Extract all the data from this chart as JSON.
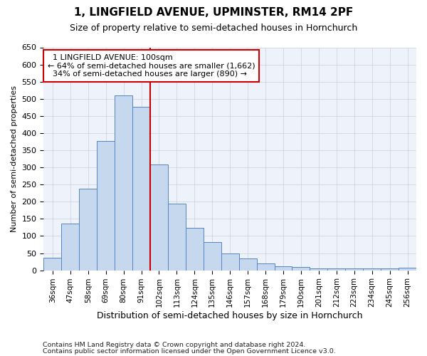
{
  "title1": "1, LINGFIELD AVENUE, UPMINSTER, RM14 2PF",
  "title2": "Size of property relative to semi-detached houses in Hornchurch",
  "xlabel": "Distribution of semi-detached houses by size in Hornchurch",
  "ylabel": "Number of semi-detached properties",
  "categories": [
    "36sqm",
    "47sqm",
    "58sqm",
    "69sqm",
    "80sqm",
    "91sqm",
    "102sqm",
    "113sqm",
    "124sqm",
    "135sqm",
    "146sqm",
    "157sqm",
    "168sqm",
    "179sqm",
    "190sqm",
    "201sqm",
    "212sqm",
    "223sqm",
    "234sqm",
    "245sqm",
    "256sqm"
  ],
  "values": [
    37,
    136,
    237,
    378,
    510,
    477,
    308,
    194,
    124,
    82,
    48,
    35,
    20,
    12,
    10,
    5,
    5,
    5,
    5,
    5,
    8
  ],
  "bar_color": "#c5d8ee",
  "bar_edge_color": "#5585c5",
  "marker_label": "1 LINGFIELD AVENUE: 100sqm",
  "pct_smaller": "64%",
  "n_smaller": "1,662",
  "pct_larger": "34%",
  "n_larger": "890",
  "annotation_line_color": "#cc0000",
  "annotation_box_edge_color": "#cc0000",
  "footnote1": "Contains HM Land Registry data © Crown copyright and database right 2024.",
  "footnote2": "Contains public sector information licensed under the Open Government Licence v3.0.",
  "ylim": [
    0,
    650
  ],
  "yticks": [
    0,
    50,
    100,
    150,
    200,
    250,
    300,
    350,
    400,
    450,
    500,
    550,
    600,
    650
  ],
  "bg_color": "#eef2fa",
  "marker_bin_index": 5
}
